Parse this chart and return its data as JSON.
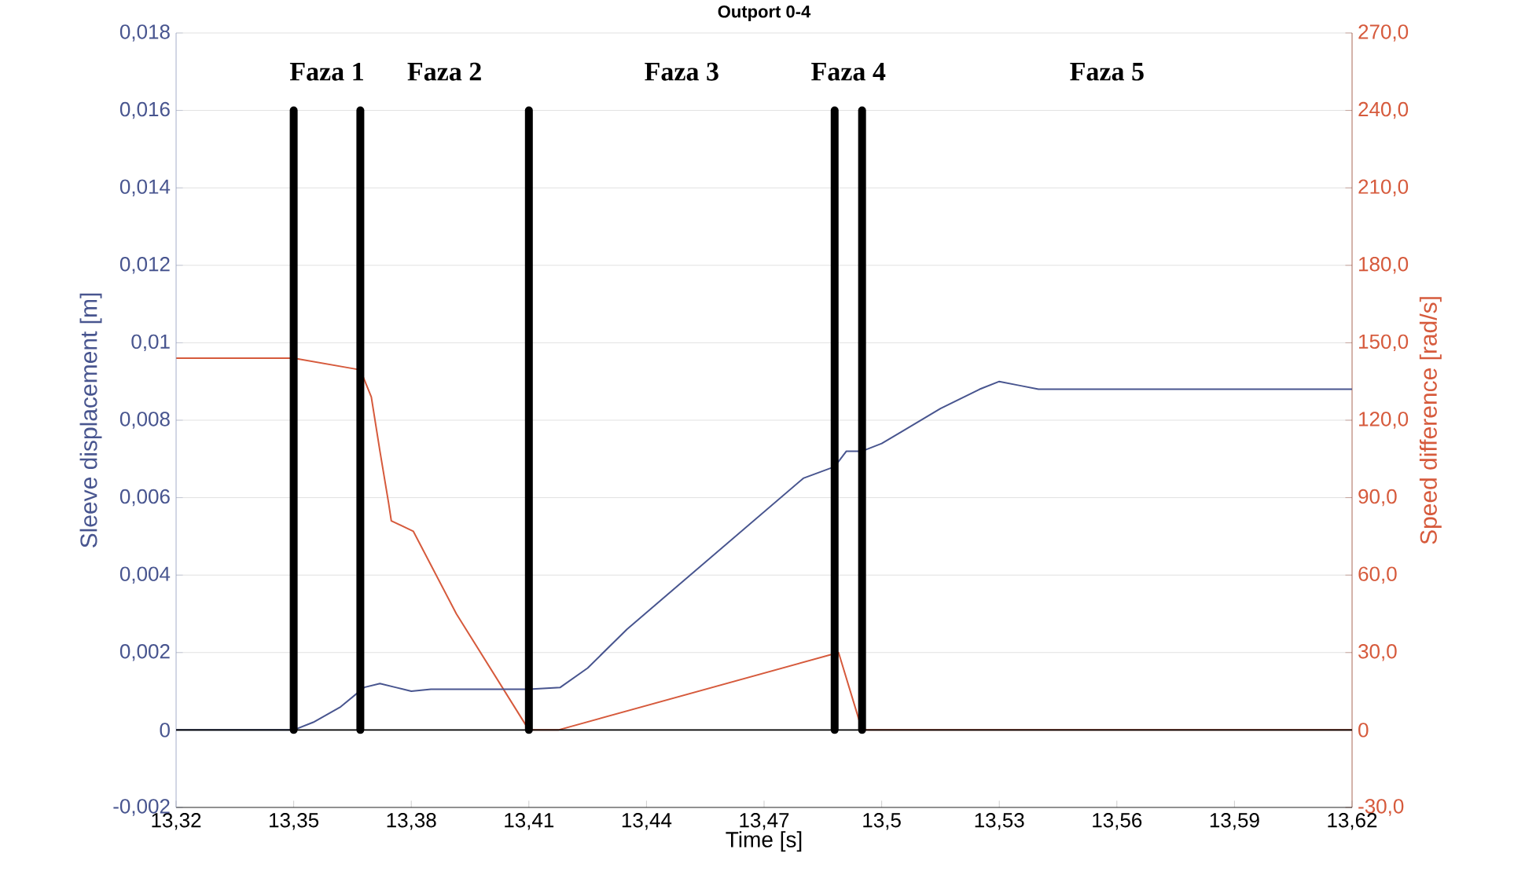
{
  "chart_data": {
    "type": "line",
    "title": "Outport 0-4",
    "xlabel": "Time [s]",
    "ylabel": "Sleeve displacement [m]",
    "y2label": "Speed difference [rad/s]",
    "xlim": [
      13.32,
      13.62
    ],
    "xticks": [
      {
        "value": 13.32,
        "label": "13,32"
      },
      {
        "value": 13.35,
        "label": "13,35"
      },
      {
        "value": 13.38,
        "label": "13,38"
      },
      {
        "value": 13.41,
        "label": "13,41"
      },
      {
        "value": 13.44,
        "label": "13,44"
      },
      {
        "value": 13.47,
        "label": "13,47"
      },
      {
        "value": 13.5,
        "label": "13,5"
      },
      {
        "value": 13.53,
        "label": "13,53"
      },
      {
        "value": 13.56,
        "label": "13,56"
      },
      {
        "value": 13.59,
        "label": "13,59"
      },
      {
        "value": 13.62,
        "label": "13,62"
      }
    ],
    "ylim": [
      -0.002,
      0.018
    ],
    "yticks": [
      {
        "value": -0.002,
        "label": "-0,002"
      },
      0,
      {
        "value": 0.002,
        "label": "0,002"
      },
      {
        "value": 0.004,
        "label": "0,004"
      },
      {
        "value": 0.006,
        "label": "0,006"
      },
      {
        "value": 0.008,
        "label": "0,008"
      },
      {
        "value": 0.01,
        "label": "0,01"
      },
      {
        "value": 0.012,
        "label": "0,012"
      },
      {
        "value": 0.014,
        "label": "0,014"
      },
      {
        "value": 0.016,
        "label": "0,016"
      },
      {
        "value": 0.018,
        "label": "0,018"
      }
    ],
    "y2lim": [
      -30,
      270
    ],
    "y2ticks": [
      {
        "value": -30,
        "label": "-30,0"
      },
      0,
      {
        "value": 30,
        "label": "30,0"
      },
      {
        "value": 60,
        "label": "60,0"
      },
      {
        "value": 90,
        "label": "90,0"
      },
      {
        "value": 120,
        "label": "120,0"
      },
      {
        "value": 150,
        "label": "150,0"
      },
      {
        "value": 180,
        "label": "180,0"
      },
      {
        "value": 210,
        "label": "210,0"
      },
      {
        "value": 240,
        "label": "240,0"
      },
      {
        "value": 270,
        "label": "270,0"
      }
    ],
    "grid": true,
    "marker": "none",
    "series": [
      {
        "color": "#48558f",
        "x": [
          13.32,
          13.35,
          13.355,
          13.362,
          13.368,
          13.372,
          13.376,
          13.38,
          13.385,
          13.41,
          13.418,
          13.425,
          13.435,
          13.45,
          13.465,
          13.48,
          13.488,
          13.491,
          13.495,
          13.5,
          13.505,
          13.515,
          13.525,
          13.53,
          13.535,
          13.54,
          13.62
        ],
        "values": [
          0,
          0,
          0.0002,
          0.0006,
          0.0011,
          0.0012,
          0.0011,
          0.001,
          0.00105,
          0.00105,
          0.0011,
          0.0016,
          0.0026,
          0.0039,
          0.0052,
          0.0065,
          0.0068,
          0.0072,
          0.0072,
          0.0074,
          0.0077,
          0.0083,
          0.0088,
          0.009,
          0.0089,
          0.0088,
          0.0088
        ]
      },
      {
        "color": "#d65a3c",
        "axis": "y2",
        "x": [
          13.32,
          13.35,
          13.367,
          13.3698,
          13.372,
          13.3742,
          13.3749,
          13.3805,
          13.3915,
          13.41,
          13.4175,
          13.489,
          13.495,
          13.62
        ],
        "values": [
          144,
          144,
          139.5,
          129,
          108,
          88,
          81,
          77,
          45,
          0,
          0,
          30,
          0,
          0
        ]
      }
    ],
    "ref_lines": [
      {
        "axis": "y",
        "value": 0,
        "color": "#000000"
      },
      {
        "axis": "x",
        "value": 13.35,
        "color": "#000000"
      },
      {
        "axis": "x",
        "value": 13.367,
        "color": "#000000"
      },
      {
        "axis": "x",
        "value": 13.41,
        "color": "#000000"
      },
      {
        "axis": "x",
        "value": 13.488,
        "color": "#000000"
      },
      {
        "axis": "x",
        "value": 13.495,
        "color": "#000000"
      }
    ],
    "annotations": [
      "Faza 1",
      "Faza 2",
      "Faza 3",
      "Faza 4",
      "Faza 5"
    ]
  }
}
